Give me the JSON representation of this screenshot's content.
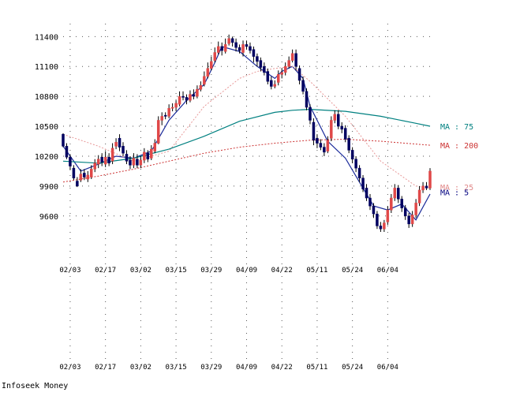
{
  "chart_data": {
    "type": "candlestick",
    "y_ticks": [
      11400,
      11100,
      10800,
      10500,
      10200,
      9900,
      9600
    ],
    "ylim": [
      9250,
      11450
    ],
    "x_tick_labels": [
      "02/03",
      "02/17",
      "03/02",
      "03/15",
      "03/29",
      "04/09",
      "04/22",
      "05/11",
      "05/24",
      "06/04"
    ],
    "x_tick_index": [
      2,
      12,
      22,
      32,
      42,
      52,
      62,
      72,
      82,
      92
    ],
    "grid": true,
    "candles": [
      [
        10420,
        10300,
        10430,
        10290
      ],
      [
        10300,
        10190,
        10330,
        10170
      ],
      [
        10190,
        10100,
        10220,
        10060
      ],
      [
        10080,
        9980,
        10110,
        9960
      ],
      [
        9950,
        9900,
        9990,
        9890
      ],
      [
        9960,
        10020,
        10070,
        9940
      ],
      [
        10030,
        9990,
        10070,
        9960
      ],
      [
        9970,
        10010,
        10050,
        9940
      ],
      [
        9990,
        10070,
        10110,
        9970
      ],
      [
        10070,
        10130,
        10170,
        10040
      ],
      [
        10120,
        10170,
        10210,
        10080
      ],
      [
        10190,
        10140,
        10230,
        10100
      ],
      [
        10120,
        10190,
        10250,
        10090
      ],
      [
        10190,
        10130,
        10230,
        10100
      ],
      [
        10150,
        10280,
        10330,
        10120
      ],
      [
        10300,
        10340,
        10380,
        10270
      ],
      [
        10380,
        10290,
        10420,
        10250
      ],
      [
        10300,
        10230,
        10340,
        10200
      ],
      [
        10220,
        10150,
        10260,
        10120
      ],
      [
        10160,
        10110,
        10200,
        10070
      ],
      [
        10110,
        10180,
        10230,
        10080
      ],
      [
        10170,
        10110,
        10220,
        10080
      ],
      [
        10110,
        10160,
        10200,
        10080
      ],
      [
        10160,
        10240,
        10280,
        10130
      ],
      [
        10230,
        10170,
        10260,
        10140
      ],
      [
        10180,
        10270,
        10310,
        10160
      ],
      [
        10250,
        10330,
        10370,
        10230
      ],
      [
        10330,
        10560,
        10600,
        10320
      ],
      [
        10560,
        10600,
        10640,
        10510
      ],
      [
        10610,
        10600,
        10640,
        10570
      ],
      [
        10600,
        10680,
        10720,
        10580
      ],
      [
        10680,
        10690,
        10730,
        10650
      ],
      [
        10690,
        10730,
        10760,
        10650
      ],
      [
        10720,
        10800,
        10850,
        10700
      ],
      [
        10800,
        10790,
        10850,
        10760
      ],
      [
        10790,
        10760,
        10820,
        10720
      ],
      [
        10760,
        10820,
        10860,
        10740
      ],
      [
        10820,
        10800,
        10870,
        10770
      ],
      [
        10800,
        10870,
        10910,
        10780
      ],
      [
        10870,
        10910,
        10950,
        10850
      ],
      [
        10920,
        11000,
        11050,
        10900
      ],
      [
        11000,
        11080,
        11140,
        10980
      ],
      [
        11080,
        11150,
        11200,
        11060
      ],
      [
        11160,
        11240,
        11290,
        11140
      ],
      [
        11240,
        11300,
        11350,
        11220
      ],
      [
        11300,
        11260,
        11340,
        11210
      ],
      [
        11250,
        11320,
        11380,
        11230
      ],
      [
        11330,
        11380,
        11420,
        11310
      ],
      [
        11380,
        11340,
        11400,
        11300
      ],
      [
        11340,
        11290,
        11380,
        11250
      ],
      [
        11290,
        11260,
        11320,
        11230
      ],
      [
        11240,
        11320,
        11360,
        11200
      ],
      [
        11320,
        11300,
        11360,
        11270
      ],
      [
        11300,
        11260,
        11340,
        11230
      ],
      [
        11270,
        11200,
        11300,
        11140
      ],
      [
        11200,
        11150,
        11230,
        11100
      ],
      [
        11160,
        11090,
        11190,
        11050
      ],
      [
        11100,
        11040,
        11140,
        11010
      ],
      [
        11050,
        10950,
        11080,
        10920
      ],
      [
        10960,
        10900,
        11000,
        10870
      ],
      [
        10900,
        10920,
        10960,
        10880
      ],
      [
        10940,
        11020,
        11060,
        10910
      ],
      [
        11020,
        11040,
        11080,
        10980
      ],
      [
        11040,
        11100,
        11140,
        11010
      ],
      [
        11100,
        11160,
        11200,
        11080
      ],
      [
        11160,
        11230,
        11270,
        11140
      ],
      [
        11230,
        11100,
        11270,
        11060
      ],
      [
        11080,
        10960,
        11110,
        10920
      ],
      [
        10960,
        10850,
        11000,
        10820
      ],
      [
        10850,
        10690,
        10880,
        10660
      ],
      [
        10690,
        10560,
        10720,
        10520
      ],
      [
        10540,
        10360,
        10580,
        10310
      ],
      [
        10380,
        10330,
        10420,
        10280
      ],
      [
        10330,
        10290,
        10370,
        10260
      ],
      [
        10290,
        10240,
        10330,
        10200
      ],
      [
        10250,
        10360,
        10400,
        10230
      ],
      [
        10380,
        10560,
        10600,
        10350
      ],
      [
        10560,
        10620,
        10660,
        10530
      ],
      [
        10620,
        10500,
        10660,
        10470
      ],
      [
        10500,
        10470,
        10540,
        10430
      ],
      [
        10480,
        10370,
        10510,
        10340
      ],
      [
        10380,
        10260,
        10410,
        10230
      ],
      [
        10260,
        10170,
        10290,
        10130
      ],
      [
        10170,
        10080,
        10200,
        10040
      ],
      [
        10080,
        9980,
        10110,
        9940
      ],
      [
        9980,
        9870,
        10010,
        9840
      ],
      [
        9880,
        9780,
        9920,
        9750
      ],
      [
        9780,
        9700,
        9820,
        9660
      ],
      [
        9700,
        9620,
        9730,
        9580
      ],
      [
        9620,
        9500,
        9650,
        9470
      ],
      [
        9500,
        9470,
        9540,
        9440
      ],
      [
        9470,
        9530,
        9560,
        9440
      ],
      [
        9540,
        9660,
        9700,
        9510
      ],
      [
        9660,
        9780,
        9820,
        9630
      ],
      [
        9780,
        9880,
        9920,
        9750
      ],
      [
        9880,
        9770,
        9910,
        9730
      ],
      [
        9770,
        9680,
        9800,
        9640
      ],
      [
        9680,
        9600,
        9710,
        9560
      ],
      [
        9600,
        9520,
        9630,
        9480
      ],
      [
        9520,
        9610,
        9650,
        9490
      ],
      [
        9610,
        9730,
        9770,
        9580
      ],
      [
        9730,
        9860,
        9900,
        9700
      ],
      [
        9860,
        9900,
        9940,
        9830
      ],
      [
        9900,
        9880,
        9940,
        9860
      ],
      [
        9880,
        10050,
        10080,
        9860
      ]
    ],
    "series": [
      {
        "name": "MA : 5",
        "x": [
          0,
          5,
          10,
          15,
          20,
          25,
          30,
          35,
          40,
          43,
          45,
          50,
          55,
          60,
          62,
          65,
          68,
          70,
          75,
          80,
          85,
          88,
          92,
          96,
          100,
          104
        ],
        "values": [
          10300,
          10050,
          10120,
          10200,
          10180,
          10250,
          10560,
          10760,
          10920,
          11140,
          11300,
          11250,
          11100,
          10980,
          11050,
          11100,
          10980,
          10700,
          10350,
          10180,
          9880,
          9700,
          9660,
          9720,
          9560,
          9820
        ]
      },
      {
        "name": "MA : 25",
        "x": [
          0,
          10,
          20,
          30,
          40,
          50,
          55,
          60,
          65,
          70,
          80,
          90,
          100,
          104
        ],
        "values": [
          10420,
          10300,
          10150,
          10250,
          10700,
          10980,
          11050,
          11080,
          11100,
          10950,
          10600,
          10150,
          9900,
          9880
        ]
      },
      {
        "name": "MA : 75",
        "x": [
          0,
          10,
          20,
          30,
          40,
          50,
          60,
          65,
          70,
          80,
          90,
          100,
          104
        ],
        "values": [
          10150,
          10130,
          10180,
          10270,
          10400,
          10550,
          10640,
          10660,
          10670,
          10650,
          10600,
          10530,
          10500
        ]
      },
      {
        "name": "MA : 200",
        "x": [
          0,
          10,
          20,
          30,
          40,
          50,
          60,
          70,
          80,
          90,
          104
        ],
        "values": [
          9940,
          10000,
          10070,
          10150,
          10230,
          10290,
          10330,
          10360,
          10370,
          10350,
          10310
        ]
      }
    ],
    "ma_labels": [
      {
        "text": "MA : 75",
        "color": "#008080",
        "value": 10500
      },
      {
        "text": "MA : 200",
        "color": "#cc3333",
        "value": 10310
      },
      {
        "text": "MA : 25",
        "color": "#e08888",
        "value": 9890
      },
      {
        "text": "MA : 5",
        "color": "#000080",
        "value": 9840
      }
    ],
    "colors": {
      "up": "#e04848",
      "down": "#000060",
      "wick": "#000000",
      "ma5": "#1a2a9a",
      "ma25": "#e89898",
      "ma75": "#008080",
      "ma200": "#cc3333",
      "grid": "#555555"
    }
  },
  "footer": {
    "credit": "Infoseek Money"
  }
}
